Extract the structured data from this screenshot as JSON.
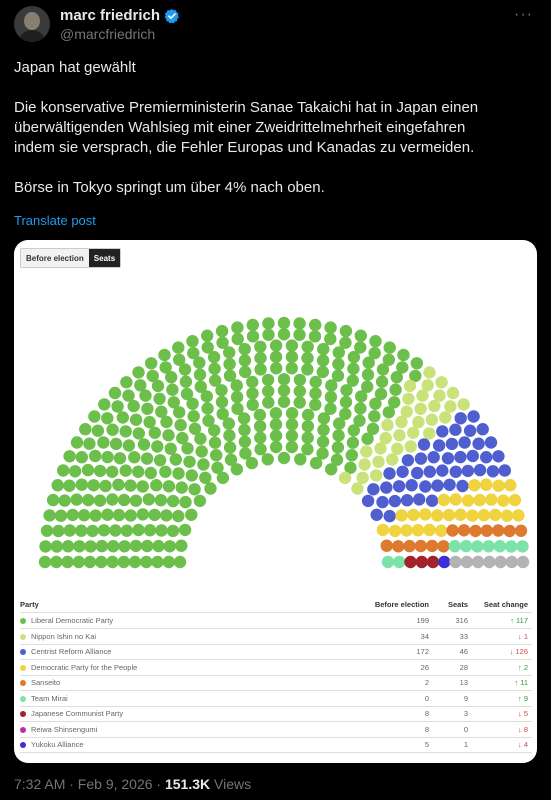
{
  "post": {
    "author_name": "marc friedrich",
    "author_handle": "@marcfriedrich",
    "more_label": "···",
    "text_lines": [
      "Japan hat gewählt",
      "",
      "Die konservative Premierministerin Sanae Takaichi hat in Japan einen",
      "überwältigenden Wahlsieg mit einer Zweidrittelmehrheit eingefahren",
      "indem sie versprach, die Fehler Europas und Kanadas zu vermeiden.",
      "",
      "Börse in Tokyo springt um über 4% nach oben."
    ],
    "translate_label": "Translate post",
    "timestamp": "7:32 AM · Feb 9, 2026 · ",
    "views_count": "151.3K",
    "views_label": " Views",
    "verified_color": "#1d9bf0"
  },
  "card": {
    "toggle": {
      "before_label": "Before election",
      "seats_label": "Seats"
    },
    "table_headers": {
      "party": "Party",
      "before": "Before election",
      "seats": "Seats",
      "change": "Seat change"
    },
    "empty_seat_color": "#ffffff"
  },
  "chart_data": {
    "type": "parliament",
    "series": [
      {
        "name": "Liberal Democratic Party",
        "before": "199",
        "seats": 316,
        "change": "↑ 117",
        "direction": "up",
        "color": "#6cbf4b"
      },
      {
        "name": "Nippon Ishin no Kai",
        "before": "34",
        "seats": 33,
        "change": "↓ 1",
        "direction": "down",
        "color": "#c9e27a"
      },
      {
        "name": "Centrist Reform Alliance",
        "before": "172",
        "seats": 46,
        "change": "↓ 126",
        "direction": "down",
        "color": "#4f5fcf"
      },
      {
        "name": "Democratic Party for the People",
        "before": "26",
        "seats": 28,
        "change": "↑ 2",
        "direction": "up",
        "color": "#efd33f"
      },
      {
        "name": "Sanseito",
        "before": "2",
        "seats": 13,
        "change": "↑ 11",
        "direction": "up",
        "color": "#de7a2f"
      },
      {
        "name": "Team Mirai",
        "before": "0",
        "seats": 9,
        "change": "↑ 9",
        "direction": "up",
        "color": "#7de2a8"
      },
      {
        "name": "Japanese Communist Party",
        "before": "8",
        "seats": 3,
        "change": "↓ 5",
        "direction": "down",
        "color": "#a3222c"
      },
      {
        "name": "Reiwa Shinsengumi",
        "before": "8",
        "seats": 0,
        "change": "↓ 8",
        "direction": "down",
        "color": "#c12ca3"
      },
      {
        "name": "Yukoku Alliance",
        "before": "5",
        "seats": 1,
        "change": "↓ 4",
        "direction": "down",
        "color": "#3b2fd6"
      },
      {
        "name": "",
        "before": "",
        "seats": 7,
        "change": "",
        "direction": "",
        "color": "#b3b3b3"
      }
    ]
  }
}
